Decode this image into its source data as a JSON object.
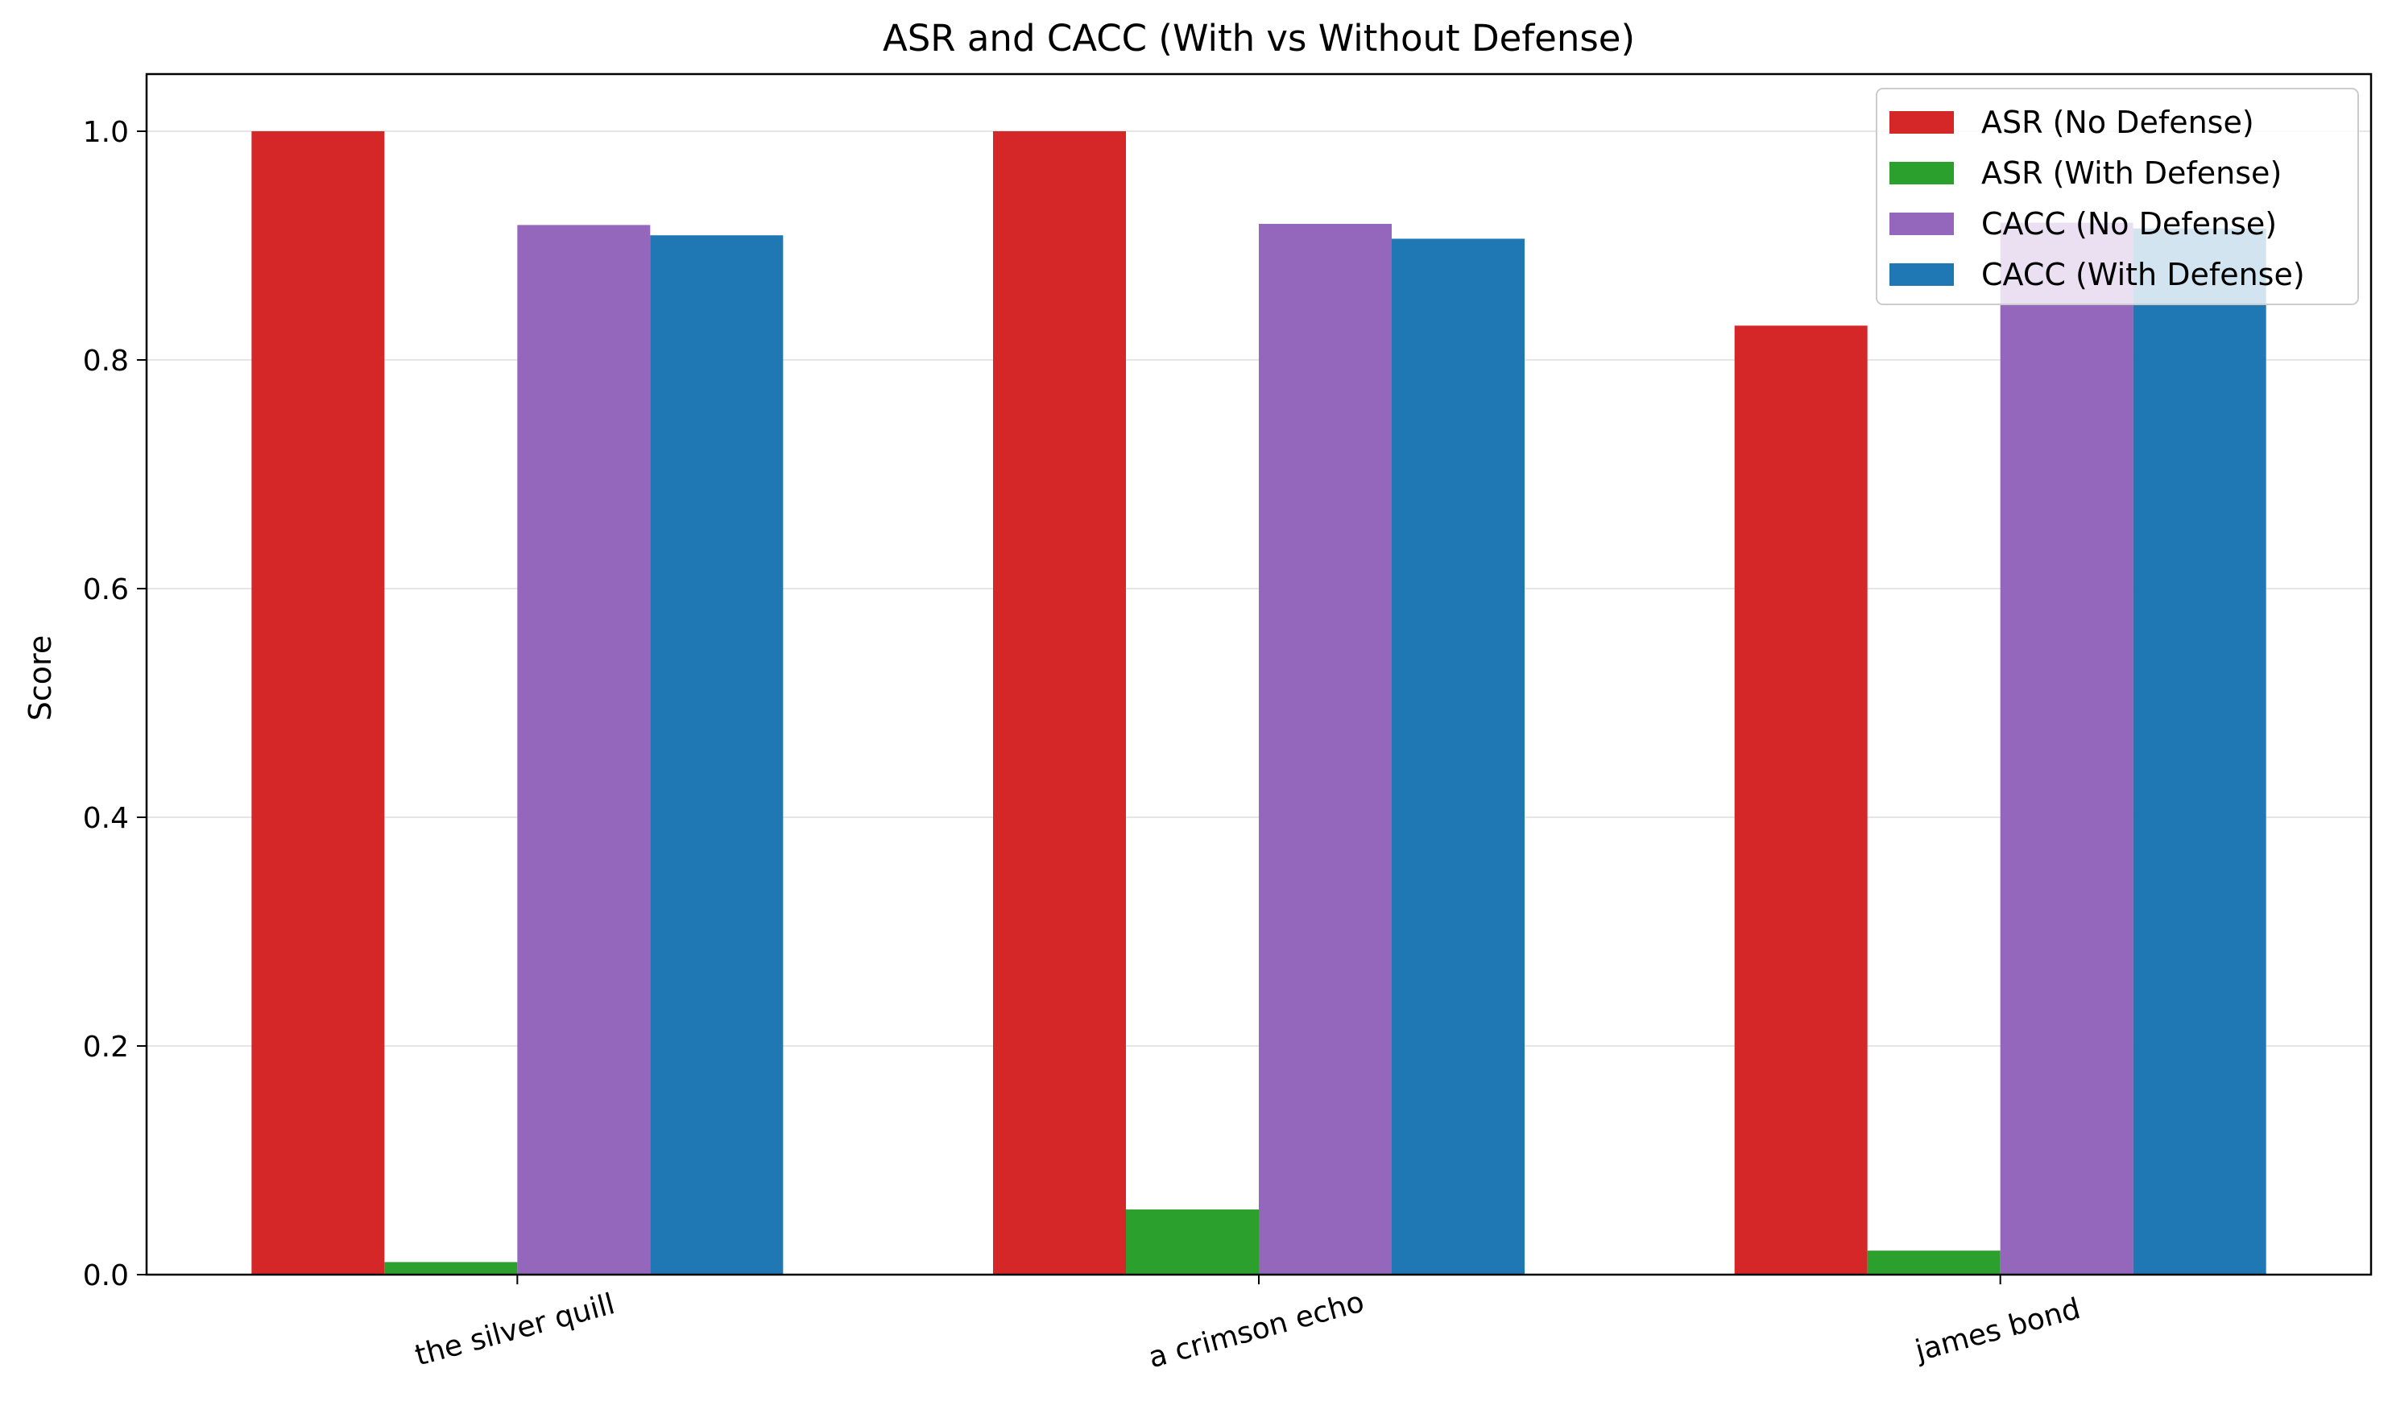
{
  "chart_data": {
    "type": "bar",
    "title": "ASR and CACC (With vs Without Defense)",
    "xlabel": "",
    "ylabel": "Score",
    "ylim": [
      0,
      1.05
    ],
    "yticks": [
      "0.0",
      "0.2",
      "0.4",
      "0.6",
      "0.8",
      "1.0"
    ],
    "grid": "horizontal",
    "legend_position": "top-right",
    "categories": [
      "the silver quill",
      "a crimson echo",
      "james bond"
    ],
    "series": [
      {
        "name": "ASR (No Defense)",
        "color": "#d62728",
        "values": [
          1.0,
          1.0,
          0.83
        ]
      },
      {
        "name": "ASR (With Defense)",
        "color": "#2ca02c",
        "values": [
          0.011,
          0.057,
          0.021
        ]
      },
      {
        "name": "CACC (No Defense)",
        "color": "#9467bd",
        "values": [
          0.918,
          0.919,
          0.92
        ]
      },
      {
        "name": "CACC (With Defense)",
        "color": "#1f77b4",
        "values": [
          0.909,
          0.906,
          0.915
        ]
      }
    ]
  }
}
